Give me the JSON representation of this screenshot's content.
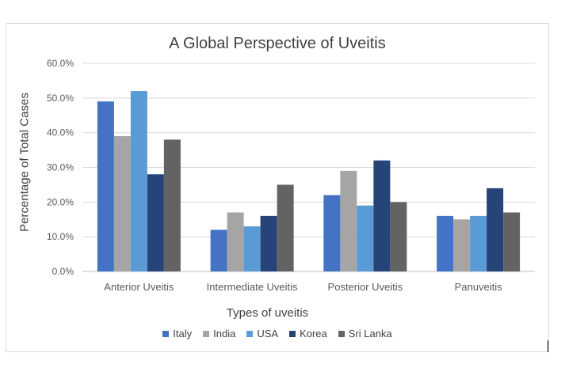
{
  "chart_data": {
    "type": "bar",
    "title": "A Global Perspective of Uveitis",
    "xlabel": "Types of uveitis",
    "ylabel": "Percentage of Total Cases",
    "categories": [
      "Anterior Uveitis",
      "Intermediate Uveitis",
      "Posterior Uveitis",
      "Panuveitis"
    ],
    "series": [
      {
        "name": "Italy",
        "color": "#4472C4",
        "values": [
          49,
          12,
          22,
          16
        ]
      },
      {
        "name": "India",
        "color": "#A5A5A5",
        "values": [
          39,
          17,
          29,
          15
        ]
      },
      {
        "name": "USA",
        "color": "#5B9BD5",
        "values": [
          52,
          13,
          19,
          16
        ]
      },
      {
        "name": "Korea",
        "color": "#264478",
        "values": [
          28,
          16,
          32,
          24
        ]
      },
      {
        "name": "Sri Lanka",
        "color": "#636363",
        "values": [
          38,
          25,
          20,
          17
        ]
      }
    ],
    "ylim": [
      0,
      60
    ],
    "yticks": [
      "0.0%",
      "10.0%",
      "20.0%",
      "30.0%",
      "40.0%",
      "50.0%",
      "60.0%"
    ],
    "grid": true,
    "legend_position": "bottom"
  }
}
